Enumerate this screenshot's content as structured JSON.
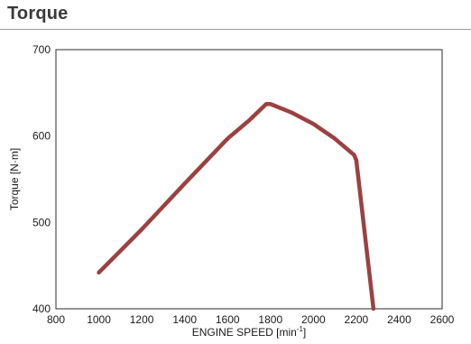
{
  "page": {
    "heading": "Torque"
  },
  "chart_data": {
    "type": "line",
    "title": "Torque",
    "xlabel": "ENGINE SPEED [min",
    "xlabel_superscript": "-1",
    "xlabel_suffix": "]",
    "ylabel": "Torque [N·m]",
    "xlim": [
      800,
      2600
    ],
    "ylim": [
      400,
      700
    ],
    "xticks": [
      800,
      1000,
      1200,
      1400,
      1600,
      1800,
      2000,
      2200,
      2400,
      2600
    ],
    "yticks": [
      400,
      500,
      600,
      700
    ],
    "grid": false,
    "legend": "none",
    "series": [
      {
        "color": "#9b4141",
        "x": [
          1000,
          1200,
          1400,
          1600,
          1700,
          1780,
          1800,
          1900,
          2000,
          2100,
          2190,
          2200,
          2280
        ],
        "y": [
          442,
          492,
          545,
          597,
          618,
          637,
          637,
          627,
          614,
          597,
          578,
          572,
          400
        ]
      }
    ]
  }
}
